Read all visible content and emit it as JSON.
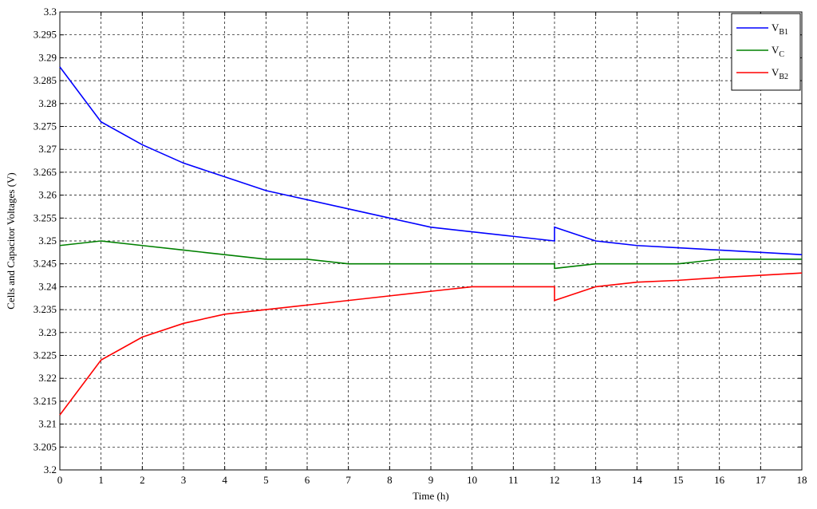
{
  "chart_data": {
    "type": "line",
    "xlabel": "Time (h)",
    "ylabel": "Cells and Capacitor Voltages (V)",
    "x": [
      0,
      1,
      2,
      3,
      4,
      5,
      6,
      7,
      8,
      9,
      10,
      11,
      12,
      12,
      13,
      14,
      15,
      16,
      17,
      18
    ],
    "series": [
      {
        "name": "VB1",
        "color": "#0000ff",
        "values": [
          3.288,
          3.276,
          3.271,
          3.267,
          3.264,
          3.261,
          3.259,
          3.257,
          3.255,
          3.253,
          3.252,
          3.251,
          3.25,
          3.253,
          3.25,
          3.249,
          3.2485,
          3.248,
          3.2475,
          3.247
        ]
      },
      {
        "name": "VC",
        "color": "#008000",
        "values": [
          3.249,
          3.25,
          3.249,
          3.248,
          3.247,
          3.246,
          3.246,
          3.245,
          3.245,
          3.245,
          3.245,
          3.245,
          3.245,
          3.244,
          3.245,
          3.245,
          3.245,
          3.246,
          3.246,
          3.246
        ]
      },
      {
        "name": "VB2",
        "color": "#ff0000",
        "values": [
          3.212,
          3.224,
          3.229,
          3.232,
          3.234,
          3.235,
          3.236,
          3.237,
          3.238,
          3.239,
          3.24,
          3.24,
          3.24,
          3.237,
          3.24,
          3.241,
          3.2414,
          3.242,
          3.2425,
          3.243
        ]
      }
    ],
    "xlim": [
      0,
      18
    ],
    "xticks": [
      0,
      1,
      2,
      3,
      4,
      5,
      6,
      7,
      8,
      9,
      10,
      11,
      12,
      13,
      14,
      15,
      16,
      17,
      18
    ],
    "ylim": [
      3.2,
      3.3
    ],
    "yticks": [
      3.2,
      3.205,
      3.21,
      3.215,
      3.22,
      3.225,
      3.23,
      3.235,
      3.24,
      3.245,
      3.25,
      3.255,
      3.26,
      3.265,
      3.27,
      3.275,
      3.28,
      3.285,
      3.29,
      3.295,
      3.3
    ],
    "grid": true,
    "legend_position": "upper right"
  }
}
